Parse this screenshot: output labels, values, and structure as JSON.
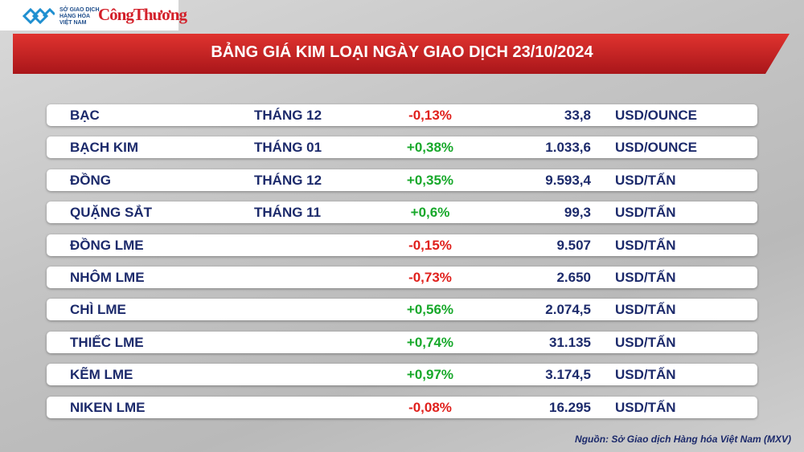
{
  "header": {
    "logo_lines": [
      "SỞ GIAO DỊCH",
      "HÀNG HÓA",
      "VIỆT NAM"
    ],
    "brand": "CôngThương",
    "title": "BẢNG GIÁ KIM LOẠI NGÀY GIAO DỊCH 23/10/2024"
  },
  "table": {
    "rows": [
      {
        "name": "BẠC",
        "month": "THÁNG 12",
        "change": "-0,13%",
        "price": "33,8",
        "unit": "USD/OUNCE"
      },
      {
        "name": "BẠCH KIM",
        "month": "THÁNG 01",
        "change": "+0,38%",
        "price": "1.033,6",
        "unit": "USD/OUNCE"
      },
      {
        "name": "ĐỒNG",
        "month": "THÁNG 12",
        "change": "+0,35%",
        "price": "9.593,4",
        "unit": "USD/TẤN"
      },
      {
        "name": "QUẶNG SẮT",
        "month": "THÁNG 11",
        "change": "+0,6%",
        "price": "99,3",
        "unit": "USD/TẤN"
      },
      {
        "name": "ĐỒNG LME",
        "change": "-0,15%",
        "price": "9.507",
        "unit": "USD/TẤN"
      },
      {
        "name": "NHÔM LME",
        "change": "-0,73%",
        "price": "2.650",
        "unit": "USD/TẤN"
      },
      {
        "name": "CHÌ LME",
        "change": "+0,56%",
        "price": "2.074,5",
        "unit": "USD/TẤN"
      },
      {
        "name": "THIẾC LME",
        "change": "+0,74%",
        "price": "31.135",
        "unit": "USD/TẤN"
      },
      {
        "name": "KẼM LME",
        "change": "+0,97%",
        "price": "3.174,5",
        "unit": "USD/TẤN"
      },
      {
        "name": "NIKEN LME",
        "change": "-0,08%",
        "price": "16.295",
        "unit": "USD/TẤN"
      }
    ]
  },
  "footer": {
    "source": "Nguồn: Sở Giao dịch Hàng hóa Việt Nam (MXV)"
  }
}
